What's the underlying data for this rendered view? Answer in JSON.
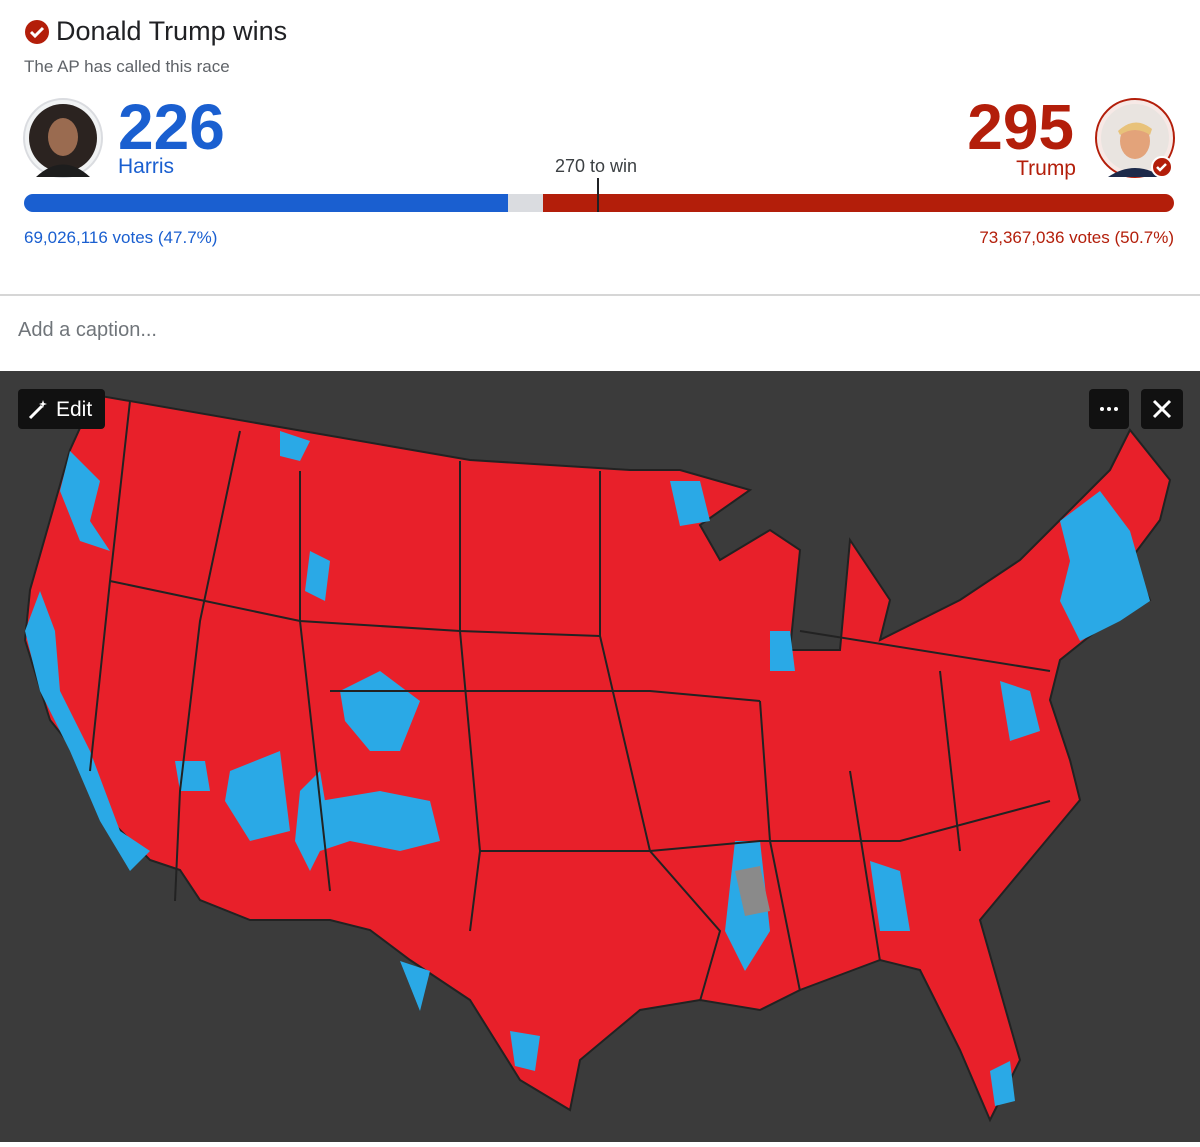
{
  "header": {
    "title": "Donald Trump wins",
    "subtitle": "The AP has called this race"
  },
  "candidates": [
    {
      "name": "Harris",
      "electoral_votes": 226,
      "votes": "69,026,116 votes (47.7%)"
    },
    {
      "name": "Trump",
      "electoral_votes": 295,
      "votes": "73,367,036 votes (50.7%)"
    }
  ],
  "threshold": "270 to win",
  "caption_placeholder": "Add a caption...",
  "toolbar": {
    "edit": "Edit"
  }
}
